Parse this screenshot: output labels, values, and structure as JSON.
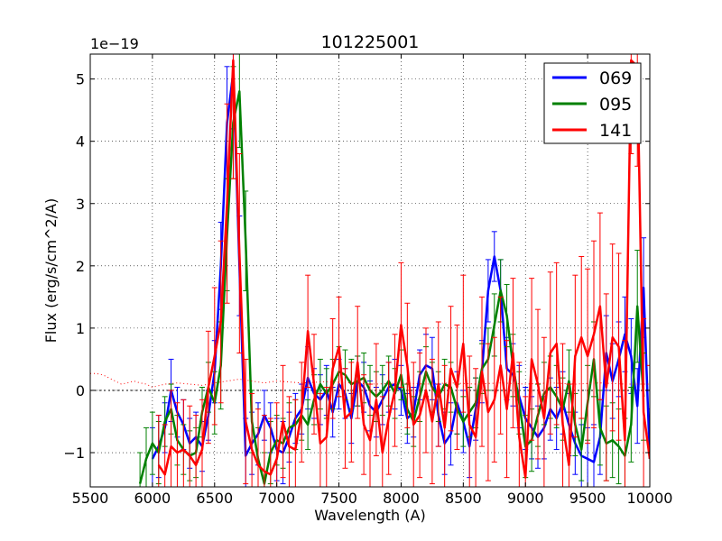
{
  "chart_data": {
    "type": "line",
    "title": "101225001",
    "xlabel": "Wavelength (A)",
    "ylabel": "Flux (erg/s/cm^2/A)",
    "y_multiplier_label": "1e−19",
    "xlim": [
      5500,
      10000
    ],
    "ylim": [
      -1.55,
      5.4
    ],
    "xticks": [
      5500,
      6000,
      6500,
      7000,
      7500,
      8000,
      8500,
      9000,
      9500,
      10000
    ],
    "xtick_labels": [
      "5500",
      "6000",
      "6500",
      "7000",
      "7500",
      "8000",
      "8500",
      "9000",
      "9500",
      "10000"
    ],
    "yticks": [
      -1,
      0,
      1,
      2,
      3,
      4,
      5
    ],
    "ytick_labels": [
      "−1",
      "0",
      "1",
      "2",
      "3",
      "4",
      "5"
    ],
    "grid": true,
    "legend_position": "top-right",
    "colors": {
      "blue": "#0000ff",
      "green": "#008000",
      "red": "#ff0000"
    },
    "series": [
      {
        "name": "069",
        "color": "#0000ff",
        "x": [
          6000,
          6050,
          6100,
          6150,
          6200,
          6250,
          6300,
          6350,
          6400,
          6450,
          6500,
          6550,
          6600,
          6650,
          6700,
          6750,
          6800,
          6850,
          6900,
          6950,
          7000,
          7050,
          7100,
          7150,
          7200,
          7250,
          7300,
          7350,
          7400,
          7450,
          7500,
          7550,
          7600,
          7650,
          7700,
          7750,
          7800,
          7850,
          7900,
          7950,
          8000,
          8050,
          8100,
          8150,
          8200,
          8250,
          8300,
          8350,
          8400,
          8450,
          8500,
          8550,
          8600,
          8650,
          8700,
          8750,
          8800,
          8850,
          8900,
          8950,
          9000,
          9050,
          9100,
          9150,
          9200,
          9250,
          9300,
          9350,
          9400,
          9450,
          9500,
          9550,
          9600,
          9650,
          9700,
          9750,
          9800,
          9850,
          9900,
          9950,
          10000
        ],
        "y": [
          -1.1,
          -0.9,
          -0.6,
          0.0,
          -0.35,
          -0.55,
          -0.85,
          -0.75,
          -0.9,
          -0.4,
          0.3,
          2.0,
          4.3,
          5.1,
          2.0,
          -1.05,
          -0.85,
          -0.7,
          -0.4,
          -0.6,
          -0.95,
          -1.0,
          -0.75,
          -0.45,
          -0.3,
          0.2,
          -0.05,
          -0.15,
          0.0,
          -0.35,
          0.1,
          -0.05,
          -0.45,
          0.15,
          0.05,
          -0.25,
          -0.35,
          -0.15,
          0.05,
          0.1,
          0.0,
          -0.45,
          -0.35,
          0.25,
          0.4,
          0.35,
          -0.4,
          -0.85,
          -0.7,
          -0.2,
          -0.5,
          -0.9,
          -0.3,
          0.3,
          1.6,
          2.15,
          1.6,
          0.35,
          0.25,
          -0.1,
          -0.45,
          -0.6,
          -0.75,
          -0.6,
          -0.3,
          -0.45,
          -0.2,
          -0.55,
          -0.85,
          -1.05,
          -1.1,
          -1.15,
          -0.75,
          0.6,
          0.15,
          0.5,
          0.9,
          0.55,
          -0.25,
          1.65,
          -1.1
        ],
        "err": [
          0.5,
          0.5,
          0.4,
          0.5,
          0.4,
          0.4,
          0.4,
          0.4,
          0.4,
          0.4,
          0.5,
          0.7,
          0.9,
          0.9,
          0.8,
          0.6,
          0.5,
          0.5,
          0.4,
          0.4,
          0.5,
          0.5,
          0.4,
          0.4,
          0.4,
          0.5,
          0.4,
          0.4,
          0.4,
          0.4,
          0.4,
          0.4,
          0.4,
          0.4,
          0.4,
          0.4,
          0.4,
          0.4,
          0.4,
          0.4,
          0.4,
          0.4,
          0.4,
          0.4,
          0.5,
          0.5,
          0.5,
          0.5,
          0.5,
          0.5,
          0.5,
          0.5,
          0.5,
          0.5,
          0.5,
          0.4,
          0.5,
          0.5,
          0.5,
          0.5,
          0.5,
          0.5,
          0.5,
          0.5,
          0.5,
          0.5,
          0.5,
          0.5,
          0.5,
          0.5,
          0.5,
          0.6,
          0.6,
          0.6,
          0.6,
          0.6,
          0.6,
          0.6,
          0.6,
          0.8,
          0.8
        ]
      },
      {
        "name": "095",
        "color": "#008000",
        "x": [
          5900,
          5950,
          6000,
          6050,
          6100,
          6150,
          6200,
          6250,
          6300,
          6350,
          6400,
          6450,
          6500,
          6550,
          6600,
          6650,
          6700,
          6750,
          6800,
          6850,
          6900,
          6950,
          7000,
          7050,
          7100,
          7150,
          7200,
          7250,
          7300,
          7350,
          7400,
          7450,
          7500,
          7550,
          7600,
          7650,
          7700,
          7750,
          7800,
          7850,
          7900,
          7950,
          8000,
          8050,
          8100,
          8150,
          8200,
          8250,
          8300,
          8350,
          8400,
          8450,
          8500,
          8550,
          8600,
          8650,
          8700,
          8750,
          8800,
          8850,
          8900,
          8950,
          9000,
          9050,
          9100,
          9150,
          9200,
          9250,
          9300,
          9350,
          9400,
          9450,
          9500,
          9550,
          9600,
          9650,
          9700,
          9750,
          9800,
          9850,
          9900,
          9950
        ],
        "y": [
          -1.5,
          -1.1,
          -0.85,
          -1.0,
          -0.5,
          -0.3,
          -0.8,
          -0.95,
          -1.05,
          -1.0,
          -0.35,
          0.05,
          -0.2,
          0.4,
          2.5,
          4.3,
          4.8,
          2.4,
          -0.5,
          -1.1,
          -1.5,
          -1.0,
          -0.8,
          -0.85,
          -0.6,
          -0.55,
          -0.4,
          -0.55,
          -0.15,
          0.1,
          -0.05,
          0.1,
          0.3,
          0.25,
          0.1,
          0.15,
          0.2,
          0.0,
          -0.1,
          0.0,
          0.15,
          -0.05,
          0.25,
          -0.3,
          -0.5,
          -0.1,
          0.3,
          0.05,
          -0.1,
          0.1,
          0.05,
          -0.3,
          -0.5,
          -0.35,
          -0.2,
          0.35,
          0.5,
          1.05,
          1.6,
          1.2,
          0.4,
          -0.2,
          -0.9,
          -0.8,
          -0.4,
          -0.05,
          0.05,
          -0.1,
          -0.3,
          0.15,
          -0.55,
          -0.95,
          -0.2,
          0.5,
          -0.6,
          -0.85,
          -0.8,
          -0.9,
          -1.05,
          -0.55,
          1.35,
          -0.1
        ],
        "err": [
          0.5,
          0.5,
          0.5,
          0.5,
          0.4,
          0.4,
          0.4,
          0.4,
          0.4,
          0.4,
          0.4,
          0.4,
          0.5,
          0.7,
          0.9,
          0.9,
          0.9,
          0.8,
          0.5,
          0.5,
          0.5,
          0.5,
          0.4,
          0.4,
          0.4,
          0.4,
          0.4,
          0.4,
          0.4,
          0.4,
          0.4,
          0.4,
          0.4,
          0.4,
          0.4,
          0.4,
          0.4,
          0.4,
          0.4,
          0.4,
          0.4,
          0.4,
          0.4,
          0.4,
          0.4,
          0.4,
          0.4,
          0.4,
          0.4,
          0.4,
          0.4,
          0.4,
          0.4,
          0.4,
          0.4,
          0.4,
          0.5,
          0.5,
          0.5,
          0.5,
          0.5,
          0.5,
          0.5,
          0.5,
          0.5,
          0.5,
          0.5,
          0.5,
          0.5,
          0.5,
          0.5,
          0.5,
          0.6,
          0.6,
          0.6,
          0.6,
          0.6,
          0.6,
          0.6,
          0.6,
          0.9,
          0.7
        ]
      },
      {
        "name": "141",
        "color": "#ff0000",
        "x": [
          6050,
          6100,
          6150,
          6200,
          6250,
          6300,
          6350,
          6400,
          6450,
          6500,
          6550,
          6600,
          6650,
          6700,
          6750,
          6800,
          6850,
          6900,
          6950,
          7000,
          7050,
          7100,
          7150,
          7200,
          7250,
          7300,
          7350,
          7400,
          7450,
          7500,
          7550,
          7600,
          7650,
          7700,
          7750,
          7800,
          7850,
          7900,
          7950,
          8000,
          8050,
          8100,
          8150,
          8200,
          8250,
          8300,
          8350,
          8400,
          8450,
          8500,
          8550,
          8600,
          8650,
          8700,
          8750,
          8800,
          8850,
          8900,
          8950,
          9000,
          9050,
          9100,
          9150,
          9200,
          9250,
          9300,
          9350,
          9400,
          9450,
          9500,
          9550,
          9600,
          9650,
          9700,
          9750,
          9800,
          9850,
          9900,
          9950,
          10000
        ],
        "y": [
          -1.2,
          -1.35,
          -0.9,
          -1.0,
          -0.95,
          -1.05,
          -1.2,
          -0.95,
          0.05,
          0.55,
          1.1,
          3.0,
          5.3,
          2.2,
          -0.5,
          -0.95,
          -1.2,
          -1.3,
          -1.35,
          -1.1,
          -0.5,
          -0.9,
          -0.95,
          -0.35,
          0.95,
          0.1,
          -0.85,
          -0.75,
          0.35,
          0.7,
          -0.45,
          -0.35,
          0.45,
          -0.55,
          -0.8,
          -0.15,
          -1.0,
          -0.45,
          0.0,
          1.05,
          0.4,
          -0.55,
          -0.4,
          0.0,
          -0.5,
          0.1,
          -0.6,
          0.35,
          0.05,
          0.75,
          -0.55,
          -0.75,
          0.3,
          -0.35,
          -0.15,
          0.4,
          -0.3,
          0.6,
          -0.75,
          -1.4,
          0.5,
          0.1,
          -0.45,
          0.6,
          0.75,
          -0.55,
          -1.2,
          0.55,
          0.85,
          0.55,
          0.9,
          1.35,
          0.05,
          0.85,
          0.7,
          -0.8,
          5.3,
          5.2,
          -0.35,
          -1.1
        ],
        "err": [
          0.8,
          0.8,
          0.9,
          0.8,
          0.8,
          0.8,
          0.8,
          0.8,
          0.9,
          1.1,
          1.3,
          1.6,
          1.9,
          1.6,
          1.0,
          0.9,
          0.9,
          0.9,
          0.9,
          0.9,
          0.9,
          0.8,
          0.8,
          0.8,
          0.9,
          0.8,
          0.8,
          0.8,
          0.8,
          0.8,
          0.8,
          0.8,
          0.9,
          0.8,
          0.9,
          0.9,
          0.9,
          0.9,
          0.9,
          1.0,
          1.0,
          1.0,
          1.0,
          1.0,
          1.0,
          1.0,
          1.0,
          1.0,
          1.0,
          1.1,
          1.1,
          1.1,
          1.2,
          1.1,
          1.0,
          1.1,
          1.1,
          1.2,
          1.2,
          1.3,
          1.3,
          1.2,
          1.3,
          1.3,
          1.3,
          1.3,
          1.3,
          1.3,
          1.3,
          1.4,
          1.5,
          1.5,
          1.5,
          1.5,
          1.5,
          1.6,
          1.5,
          1.6,
          1.5,
          1.5
        ]
      },
      {
        "name": "sky",
        "color": "#ff0000",
        "style": "dotted",
        "in_legend": false,
        "x": [
          5500,
          5550,
          5600,
          5650,
          5700,
          5750,
          5800,
          5850,
          5900,
          5950,
          6000,
          6100,
          6200,
          6300,
          6400,
          6500,
          6600,
          6700,
          6800,
          6900,
          7000,
          7200,
          7400,
          7600,
          7800,
          8000,
          8200,
          8400,
          8600,
          8800,
          9000,
          9200,
          9400,
          9600,
          9800,
          10000
        ],
        "y": [
          0.27,
          0.27,
          0.25,
          0.2,
          0.15,
          0.1,
          0.12,
          0.15,
          0.12,
          0.1,
          0.05,
          0.1,
          0.12,
          0.1,
          0.08,
          0.12,
          0.15,
          0.18,
          0.15,
          0.12,
          0.15,
          0.12,
          0.14,
          0.12,
          0.1,
          0.12,
          0.1,
          0.12,
          0.1,
          0.12,
          0.1,
          0.12,
          0.1,
          0.12,
          0.1,
          0.1
        ]
      }
    ]
  }
}
